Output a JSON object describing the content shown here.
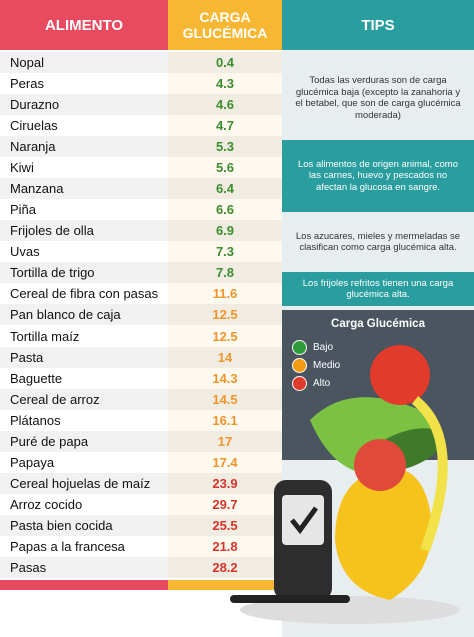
{
  "table": {
    "header": [
      "ALIMENTO",
      "CARGA GLUCÉMICA"
    ],
    "rows": [
      {
        "food": "Nopal",
        "load": "0.4",
        "color": "#2e8b2e"
      },
      {
        "food": "Peras",
        "load": "4.3",
        "color": "#2e8b2e"
      },
      {
        "food": "Durazno",
        "load": "4.6",
        "color": "#2e8b2e"
      },
      {
        "food": "Ciruelas",
        "load": "4.7",
        "color": "#2e8b2e"
      },
      {
        "food": "Naranja",
        "load": "5.3",
        "color": "#2e8b2e"
      },
      {
        "food": "Kiwi",
        "load": "5.6",
        "color": "#2e8b2e"
      },
      {
        "food": "Manzana",
        "load": "6.4",
        "color": "#2e8b2e"
      },
      {
        "food": "Piña",
        "load": "6.6",
        "color": "#2e8b2e"
      },
      {
        "food": "Frijoles de olla",
        "load": "6.9",
        "color": "#2e8b2e"
      },
      {
        "food": "Uvas",
        "load": "7.3",
        "color": "#2e8b2e"
      },
      {
        "food": "Tortilla de trigo",
        "load": "7.8",
        "color": "#2e8b2e"
      },
      {
        "food": "Cereal de fibra con pasas",
        "load": "11.6",
        "color": "#f0932b"
      },
      {
        "food": "Pan blanco de caja",
        "load": "12.5",
        "color": "#f0932b"
      },
      {
        "food": "Tortilla maíz",
        "load": "12.5",
        "color": "#f0932b"
      },
      {
        "food": "Pasta",
        "load": "14",
        "color": "#f0932b"
      },
      {
        "food": "Baguette",
        "load": "14.3",
        "color": "#f0932b"
      },
      {
        "food": "Cereal de arroz",
        "load": "14.5",
        "color": "#f0932b"
      },
      {
        "food": "Plátanos",
        "load": "16.1",
        "color": "#f0932b"
      },
      {
        "food": "Puré de papa",
        "load": "17",
        "color": "#f0932b"
      },
      {
        "food": "Papaya",
        "load": "17.4",
        "color": "#f0932b"
      },
      {
        "food": "Cereal hojuelas de maíz",
        "load": "23.9",
        "color": "#d62a2a"
      },
      {
        "food": "Arroz cocido",
        "load": "29.7",
        "color": "#d62a2a"
      },
      {
        "food": "Pasta bien cocida",
        "load": "25.5",
        "color": "#d62a2a"
      },
      {
        "food": "Papas a la francesa",
        "load": "21.8",
        "color": "#d62a2a"
      },
      {
        "food": "Pasas",
        "load": "28.2",
        "color": "#d62a2a"
      }
    ]
  },
  "tips": {
    "title": "TIPS",
    "items": [
      "Todas las verduras son de carga glucémica baja (excepto la zanahoria y el betabel, que son de carga glucémica moderada)",
      "Los alimentos de origen animal, como las carnes, huevo y pescados no afectan la glucosa en sangre.",
      "Los azucares, mieles y mermeladas se clasifican como carga glucémica alta.",
      "Los frijoles refritos tienen una carga glucémica alta."
    ]
  },
  "legend": {
    "title": "Carga Glucémica",
    "items": [
      {
        "label": "Bajo",
        "color": "#2e9a3a"
      },
      {
        "label": "Medio",
        "color": "#f39c12"
      },
      {
        "label": "Alto",
        "color": "#e03a2a"
      }
    ]
  }
}
